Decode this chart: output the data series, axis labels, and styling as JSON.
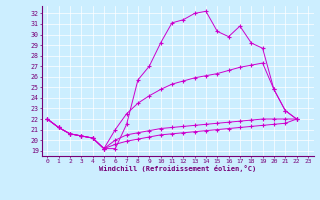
{
  "xlabel": "Windchill (Refroidissement éolien,°C)",
  "bg_color": "#cceeff",
  "line_color": "#cc00cc",
  "grid_color": "#ffffff",
  "xlim": [
    -0.5,
    23.5
  ],
  "ylim": [
    18.5,
    32.7
  ],
  "yticks": [
    19,
    20,
    21,
    22,
    23,
    24,
    25,
    26,
    27,
    28,
    29,
    30,
    31,
    32
  ],
  "xticks": [
    0,
    1,
    2,
    3,
    4,
    5,
    6,
    7,
    8,
    9,
    10,
    11,
    12,
    13,
    14,
    15,
    16,
    17,
    18,
    19,
    20,
    21,
    22,
    23
  ],
  "lines": [
    {
      "x": [
        0,
        1,
        2,
        3,
        4,
        5,
        6,
        7,
        8,
        9,
        10,
        11,
        12,
        13,
        14,
        15,
        16,
        17,
        18,
        19,
        20,
        21,
        22
      ],
      "y": [
        22.0,
        21.2,
        20.6,
        20.4,
        20.2,
        19.2,
        19.2,
        21.5,
        25.7,
        27.0,
        29.2,
        31.1,
        31.4,
        32.0,
        32.2,
        30.3,
        29.8,
        30.8,
        29.2,
        28.7,
        24.8,
        22.8,
        22.0
      ]
    },
    {
      "x": [
        0,
        1,
        2,
        3,
        4,
        5,
        6,
        7,
        8,
        9,
        10,
        11,
        12,
        13,
        14,
        15,
        16,
        17,
        18,
        19,
        20,
        21,
        22
      ],
      "y": [
        22.0,
        21.2,
        20.6,
        20.4,
        20.2,
        19.2,
        21.0,
        22.5,
        23.5,
        24.2,
        24.8,
        25.3,
        25.6,
        25.9,
        26.1,
        26.3,
        26.6,
        26.9,
        27.1,
        27.3,
        24.8,
        22.8,
        22.0
      ]
    },
    {
      "x": [
        0,
        1,
        2,
        3,
        4,
        5,
        6,
        7,
        8,
        9,
        10,
        11,
        12,
        13,
        14,
        15,
        16,
        17,
        18,
        19,
        20,
        21,
        22
      ],
      "y": [
        22.0,
        21.2,
        20.6,
        20.4,
        20.2,
        19.2,
        20.0,
        20.5,
        20.7,
        20.9,
        21.1,
        21.2,
        21.3,
        21.4,
        21.5,
        21.6,
        21.7,
        21.8,
        21.9,
        22.0,
        22.0,
        22.0,
        22.0
      ]
    },
    {
      "x": [
        0,
        1,
        2,
        3,
        4,
        5,
        6,
        7,
        8,
        9,
        10,
        11,
        12,
        13,
        14,
        15,
        16,
        17,
        18,
        19,
        20,
        21,
        22
      ],
      "y": [
        22.0,
        21.2,
        20.6,
        20.4,
        20.2,
        19.2,
        19.6,
        19.9,
        20.1,
        20.3,
        20.5,
        20.6,
        20.7,
        20.8,
        20.9,
        21.0,
        21.1,
        21.2,
        21.3,
        21.4,
        21.5,
        21.6,
        22.0
      ]
    }
  ]
}
